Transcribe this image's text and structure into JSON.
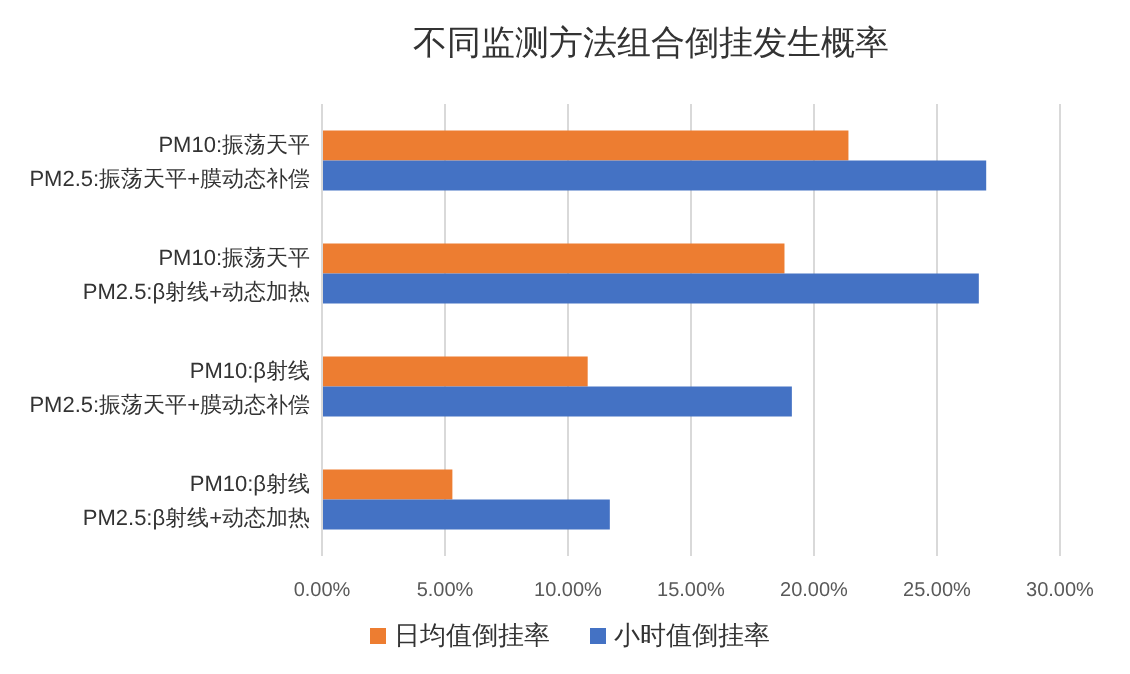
{
  "chart_data": {
    "type": "bar",
    "orientation": "horizontal",
    "title": "不同监测方法组合倒挂发生概率",
    "categories": [
      "PM10:振荡天平\nPM2.5:振荡天平+膜动态补偿",
      "PM10:振荡天平\nPM2.5:β射线+动态加热",
      "PM10:β射线\nPM2.5:振荡天平+膜动态补偿",
      "PM10:β射线\nPM2.5:β射线+动态加热"
    ],
    "series": [
      {
        "name": "日均值倒挂率",
        "color": "#ed7d31",
        "values": [
          21.4,
          18.8,
          10.8,
          5.3
        ]
      },
      {
        "name": "小时值倒挂率",
        "color": "#4472c4",
        "values": [
          27.0,
          26.7,
          19.1,
          11.7
        ]
      }
    ],
    "xlim": [
      0,
      30
    ],
    "xticks": [
      {
        "value": 0,
        "label": "0.00%"
      },
      {
        "value": 5,
        "label": "5.00%"
      },
      {
        "value": 10,
        "label": "10.00%"
      },
      {
        "value": 15,
        "label": "15.00%"
      },
      {
        "value": 20,
        "label": "20.00%"
      },
      {
        "value": 25,
        "label": "25.00%"
      },
      {
        "value": 30,
        "label": "30.00%"
      }
    ],
    "grid": "x",
    "legend": "bottom"
  }
}
